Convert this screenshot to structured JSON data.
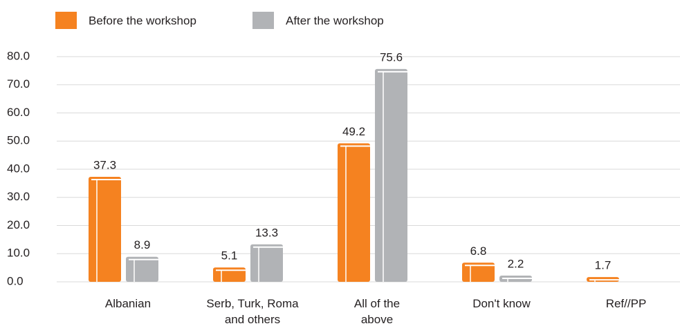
{
  "chart_data": {
    "type": "bar",
    "categories": [
      "Albanian",
      "Serb, Turk, Roma and others",
      "All of the above",
      "Don't know",
      "Ref//PP"
    ],
    "series": [
      {
        "name": "Before the workshop",
        "color": "#f58220",
        "values": [
          37.3,
          5.1,
          49.2,
          6.8,
          1.7
        ]
      },
      {
        "name": "After the workshop",
        "color": "#b1b3b6",
        "values": [
          8.9,
          13.3,
          75.6,
          2.2,
          null
        ]
      }
    ],
    "ylim": [
      0,
      80
    ],
    "yticks": [
      {
        "value": 0,
        "label": "0.0"
      },
      {
        "value": 10,
        "label": "10.0"
      },
      {
        "value": 20,
        "label": "20.0"
      },
      {
        "value": 30,
        "label": "30.0"
      },
      {
        "value": 40,
        "label": "40.0"
      },
      {
        "value": 50,
        "label": "50.0"
      },
      {
        "value": 60,
        "label": "60.0"
      },
      {
        "value": 70,
        "label": "70.0"
      },
      {
        "value": 80,
        "label": "80.0"
      }
    ],
    "grid": true,
    "legend": "top"
  }
}
